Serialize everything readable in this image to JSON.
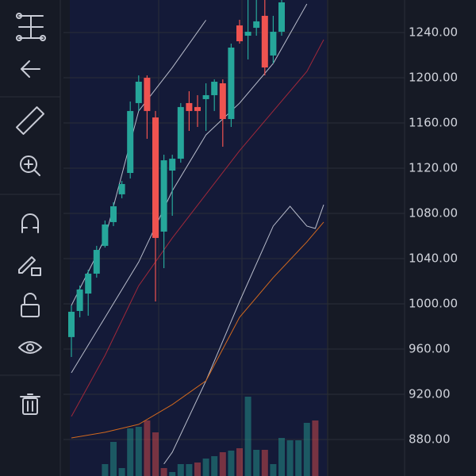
{
  "chart_data": {
    "type": "candlestick",
    "ylim": [
      847.7,
      1268.8
    ],
    "yticks": [
      {
        "value": 880,
        "label": "880.00"
      },
      {
        "value": 920,
        "label": "920.00"
      },
      {
        "value": 960,
        "label": "960.00"
      },
      {
        "value": 1000,
        "label": "1000.00"
      },
      {
        "value": 1040,
        "label": "1040.00"
      },
      {
        "value": 1080,
        "label": "1080.00"
      },
      {
        "value": 1120,
        "label": "1120.00"
      },
      {
        "value": 1160,
        "label": "1160.00"
      },
      {
        "value": 1200,
        "label": "1200.00"
      },
      {
        "value": 1240,
        "label": "1240.00"
      }
    ],
    "grid": true,
    "up_color": "#26a69a",
    "down_color": "#ef5350",
    "open": [
      970.6,
      993.7,
      1009.1,
      1026.7,
      1051.3,
      1072.3,
      1096.9,
      1115.8,
      1177.6,
      1200.0,
      1164.9,
      1063.9,
      1117.9,
      1128.4,
      1177.6,
      1174.1,
      1181.1,
      1184.6,
      1195.1,
      1163.5,
      1246.3,
      1237.2,
      1244.2,
      1254.8,
      1219.7,
      1240.7,
      null,
      null,
      null,
      null
    ],
    "high": [
      998.6,
      1016.2,
      1030.2,
      1051.3,
      1073.7,
      1089.9,
      1108.8,
      1179.0,
      1202.1,
      1202.1,
      1170.6,
      1131.9,
      1131.9,
      1177.6,
      1188.1,
      1184.6,
      1195.1,
      1198.6,
      1198.6,
      1230.2,
      1251.3,
      1268.8,
      1268.8,
      1268.8,
      1254.8,
      1268.8,
      null,
      null,
      null,
      null
    ],
    "low": [
      953.0,
      988.1,
      989.5,
      1023.2,
      1049.8,
      1068.8,
      1093.4,
      1110.9,
      1170.6,
      1146.0,
      1002.1,
      1031.6,
      1077.9,
      1124.9,
      1153.0,
      1156.5,
      1153.0,
      1170.6,
      1139.0,
      1156.5,
      1230.2,
      1216.2,
      1237.2,
      1202.1,
      1212.7,
      1237.2,
      null,
      null,
      null,
      null
    ],
    "close": [
      993.0,
      1012.7,
      1026.7,
      1047.7,
      1070.2,
      1086.3,
      1106.0,
      1170.6,
      1196.5,
      1170.6,
      1058.3,
      1127.0,
      1128.4,
      1174.1,
      1170.6,
      1170.6,
      1184.6,
      1196.5,
      1163.5,
      1226.7,
      1232.3,
      1240.7,
      1249.9,
      1209.1,
      1240.7,
      1266.7,
      null,
      null,
      null,
      null
    ],
    "volume": [
      null,
      null,
      null,
      null,
      15,
      43,
      10,
      60,
      62,
      70,
      55,
      10,
      5,
      15,
      15,
      17,
      22,
      25,
      30,
      32,
      35,
      100,
      33,
      33,
      15,
      48,
      45,
      45,
      67,
      70
    ],
    "volume_colors": [
      null,
      null,
      null,
      null,
      "#26a69a",
      "#26a69a",
      "#26a69a",
      "#26a69a",
      "#26a69a",
      "#ef5350",
      "#ef5350",
      "#ef5350",
      "#26a69a",
      "#26a69a",
      "#26a69a",
      "#ef5350",
      "#26a69a",
      "#26a69a",
      "#ef5350",
      "#26a69a",
      "#ef5350",
      "#26a69a",
      "#26a69a",
      "#ef5350",
      "#26a69a",
      "#26a69a",
      "#26a69a",
      "#26a69a",
      "#26a69a",
      "#ef5350"
    ],
    "volume_lim": [
      0,
      120
    ],
    "lines": [
      {
        "color": "#b8bccb",
        "x": [
          0,
          4,
          8,
          12,
          16
        ],
        "values": [
          998.6,
          1058.0,
          1170.6,
          1209.0,
          1251.0
        ]
      },
      {
        "color": "#b8bccb",
        "x": [
          0,
          4,
          8,
          12,
          16,
          20,
          24,
          28
        ],
        "values": [
          939.0,
          988.0,
          1037.0,
          1100.0,
          1149.5,
          1177.6,
          1212.7,
          1265.3
        ]
      },
      {
        "color": "#a0283a",
        "x": [
          0,
          4,
          8,
          12,
          16,
          20,
          24,
          28,
          30
        ],
        "values": [
          900.4,
          954.4,
          1016.0,
          1058.3,
          1096.9,
          1135.5,
          1170.6,
          1205.6,
          1233.7
        ]
      },
      {
        "color": "#b8bccb",
        "x": [
          11,
          12,
          16,
          20,
          24,
          26,
          28,
          29,
          30
        ],
        "values": [
          858.3,
          868.8,
          931.9,
          1002.1,
          1068.8,
          1086.3,
          1068.8,
          1066.7,
          1087.7
        ]
      },
      {
        "color": "#d2691e",
        "x": [
          0,
          4,
          8,
          12,
          16,
          20,
          24,
          28,
          30
        ],
        "values": [
          881.4,
          886.4,
          893.4,
          910.9,
          931.9,
          988.1,
          1023.2,
          1054.8,
          1072.3
        ]
      }
    ]
  }
}
